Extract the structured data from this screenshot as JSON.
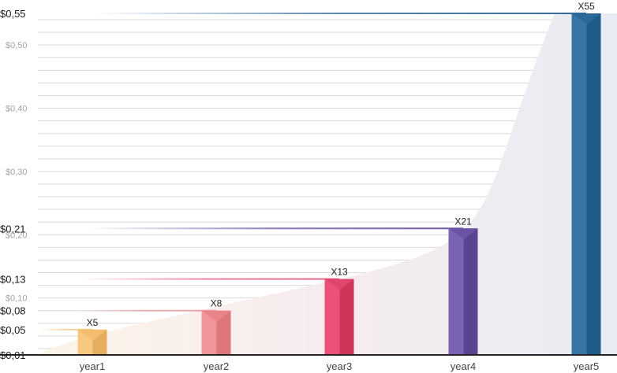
{
  "chart_data": {
    "type": "bar",
    "categories": [
      "year1",
      "year2",
      "year3",
      "year4",
      "year5"
    ],
    "values": [
      0.05,
      0.08,
      0.13,
      0.21,
      0.55
    ],
    "data_labels": [
      "X5",
      "X8",
      "X13",
      "X21",
      "X55"
    ],
    "ylim": [
      0.01,
      0.55
    ],
    "yticks_major": [
      "$0,01",
      "$0,05",
      "$0,08",
      "$0,13",
      "$0,21",
      "$0,55"
    ],
    "yticks_major_values": [
      0.01,
      0.05,
      0.08,
      0.13,
      0.21,
      0.55
    ],
    "yticks_minor": [
      "$0,10",
      "$0,20",
      "$0,30",
      "$0,40",
      "$0,50"
    ],
    "yticks_minor_values": [
      0.1,
      0.2,
      0.3,
      0.4,
      0.5
    ],
    "grid": true,
    "legend": "none",
    "colors": {
      "bars": [
        [
          "#f8c880",
          "#e5ad5e",
          "#f3bc6f"
        ],
        [
          "#f0959a",
          "#dd767d",
          "#e8858b"
        ],
        [
          "#ec5278",
          "#cf3559",
          "#e0456b"
        ],
        [
          "#7b63b3",
          "#5c4390",
          "#6b53a3"
        ],
        [
          "#3576a5",
          "#1f5b89",
          "#2a6897"
        ]
      ],
      "guide_lines": [
        "#f3c98a",
        "#eaa0a3",
        "#e36384",
        "#6f55a8",
        "#2f6a99"
      ],
      "area_fill": "#e7ebf2",
      "grid": "#d9d9d9",
      "baseline": "#222222"
    }
  }
}
